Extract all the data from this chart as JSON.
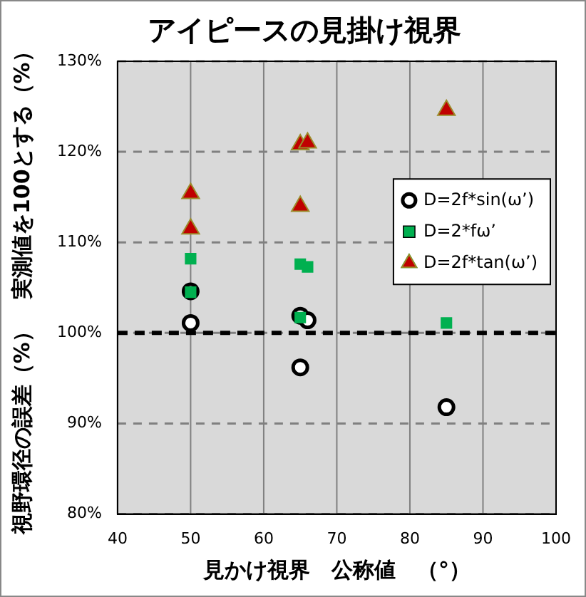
{
  "chart_data": {
    "type": "scatter",
    "title": "アイピースの見掛け視界",
    "xlabel": "見かけ視界　公称値　（°）",
    "ylabel": "視野環径の誤差（%）　実測値を100とする（%）",
    "xlim": [
      40,
      100
    ],
    "xticks": [
      40,
      50,
      60,
      70,
      80,
      90,
      100
    ],
    "ylim": [
      80,
      130
    ],
    "yticks": [
      {
        "value": 80,
        "label": "80%"
      },
      {
        "value": 90,
        "label": "90%"
      },
      {
        "value": 100,
        "label": "100%"
      },
      {
        "value": 110,
        "label": "110%"
      },
      {
        "value": 120,
        "label": "120%"
      },
      {
        "value": 130,
        "label": "130%"
      }
    ],
    "grid": true,
    "legend": "right",
    "ref_lines": [
      {
        "axis": "y",
        "value": 100,
        "color": "#000000",
        "line_style": "dashed"
      }
    ],
    "series": [
      {
        "name": "D=2f*sin(ω’)",
        "color": "#000000",
        "marker": "circle",
        "x": [
          50,
          50,
          65,
          65,
          66,
          85
        ],
        "values": [
          101.1,
          104.6,
          101.9,
          96.2,
          101.4,
          91.8
        ]
      },
      {
        "name": "D=2*fω’",
        "color": "#00b050",
        "marker": "square",
        "x": [
          50,
          50,
          65,
          65,
          66,
          85
        ],
        "values": [
          108.2,
          104.5,
          107.6,
          101.7,
          107.3,
          101.1
        ]
      },
      {
        "name": "D=2f*tan(ω’)",
        "color": "#c00000",
        "marker": "triangle",
        "x": [
          50,
          50,
          65,
          65,
          66,
          85
        ],
        "values": [
          115.4,
          111.5,
          120.8,
          114.0,
          121.0,
          124.6
        ]
      }
    ]
  }
}
